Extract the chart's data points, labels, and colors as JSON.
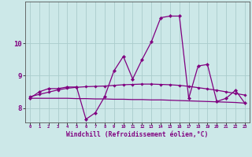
{
  "xlabel": "Windchill (Refroidissement éolien,°C)",
  "bg_color": "#cce8e8",
  "line_color": "#800080",
  "grid_color": "#aacccc",
  "xlim": [
    -0.5,
    23.5
  ],
  "ylim": [
    7.55,
    11.3
  ],
  "yticks": [
    8,
    9,
    10
  ],
  "xticks": [
    0,
    1,
    2,
    3,
    4,
    5,
    6,
    7,
    8,
    9,
    10,
    11,
    12,
    13,
    14,
    15,
    16,
    17,
    18,
    19,
    20,
    21,
    22,
    23
  ],
  "main_y": [
    8.3,
    8.5,
    8.6,
    8.6,
    8.65,
    8.65,
    7.65,
    7.85,
    8.35,
    9.15,
    9.6,
    8.9,
    9.5,
    10.05,
    10.8,
    10.85,
    10.85,
    8.3,
    9.3,
    9.35,
    8.2,
    8.3,
    8.55,
    8.15
  ],
  "trend1_y": [
    8.35,
    8.42,
    8.49,
    8.56,
    8.61,
    8.64,
    8.66,
    8.67,
    8.68,
    8.7,
    8.72,
    8.73,
    8.74,
    8.74,
    8.73,
    8.72,
    8.7,
    8.67,
    8.63,
    8.59,
    8.55,
    8.5,
    8.45,
    8.4
  ],
  "trend2_y": [
    8.3,
    8.3,
    8.3,
    8.3,
    8.3,
    8.29,
    8.29,
    8.28,
    8.28,
    8.27,
    8.27,
    8.26,
    8.26,
    8.25,
    8.25,
    8.24,
    8.23,
    8.22,
    8.21,
    8.2,
    8.19,
    8.18,
    8.17,
    8.15
  ]
}
